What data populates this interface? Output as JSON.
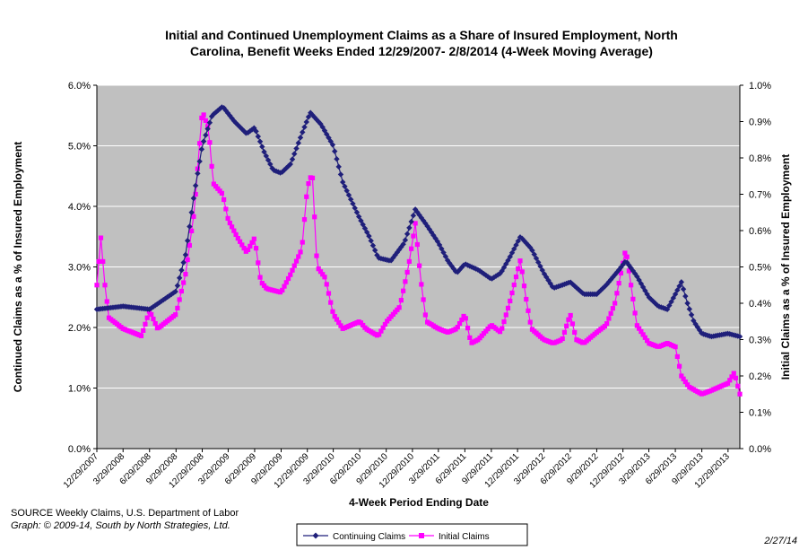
{
  "title_line1": "Initial and Continued Unemployment Claims as a Share of Insured Employment, North",
  "title_line2": "Carolina, Benefit Weeks Ended 12/29/2007- 2/8/2014 (4-Week Moving Average)",
  "source_line": "SOURCE  Weekly Claims, U.S. Department of Labor",
  "graph_credit": "Graph: © 2009-14, South by North Strategies, Ltd.",
  "date_stamp": "2/27/14",
  "colors": {
    "continuing": "#1F1F7A",
    "initial": "#FF00FF",
    "plot_bg": "#C0C0C0",
    "grid": "#FFFFFF"
  },
  "chart_data": {
    "type": "line",
    "xlabel": "4-Week Period Ending Date",
    "ylabel_left": "Continued Claims as a % of Insured Employment",
    "ylabel_right": "Initial Claims as a % of Insured Employment",
    "ylim_left": [
      0,
      6
    ],
    "ylim_right": [
      0,
      1
    ],
    "yticks_left": [
      "0.0%",
      "1.0%",
      "2.0%",
      "3.0%",
      "4.0%",
      "5.0%",
      "6.0%"
    ],
    "yticks_right": [
      "0.0%",
      "0.1%",
      "0.2%",
      "0.3%",
      "0.4%",
      "0.5%",
      "0.6%",
      "0.7%",
      "0.8%",
      "0.9%",
      "1.0%"
    ],
    "x_range": [
      "12/29/2007",
      "2/8/2014"
    ],
    "xticks": [
      "12/29/2007",
      "3/29/2008",
      "6/29/2008",
      "9/29/2008",
      "12/29/2008",
      "3/29/2009",
      "6/29/2009",
      "9/29/2009",
      "12/29/2009",
      "3/29/2010",
      "6/29/2010",
      "9/29/2010",
      "12/29/2010",
      "3/29/2011",
      "6/29/2011",
      "9/29/2011",
      "12/29/2011",
      "3/29/2012",
      "6/29/2012",
      "9/29/2012",
      "12/29/2012",
      "3/29/2013",
      "6/29/2013",
      "9/29/2013",
      "12/29/2013"
    ],
    "grid": true,
    "legend_position": "bottom",
    "series": [
      {
        "name": "Continuing Claims",
        "axis": "left",
        "marker": "diamond",
        "points": [
          [
            "12/29/2007",
            2.3
          ],
          [
            "3/29/2008",
            2.35
          ],
          [
            "6/29/2008",
            2.3
          ],
          [
            "9/29/2008",
            2.6
          ],
          [
            "11/1/2008",
            3.2
          ],
          [
            "12/1/2008",
            4.2
          ],
          [
            "12/29/2008",
            5.0
          ],
          [
            "2/1/2009",
            5.5
          ],
          [
            "3/10/2009",
            5.65
          ],
          [
            "4/20/2009",
            5.4
          ],
          [
            "6/1/2009",
            5.2
          ],
          [
            "6/29/2009",
            5.3
          ],
          [
            "8/1/2009",
            4.9
          ],
          [
            "9/1/2009",
            4.6
          ],
          [
            "9/29/2009",
            4.55
          ],
          [
            "11/1/2009",
            4.7
          ],
          [
            "12/10/2009",
            5.2
          ],
          [
            "1/8/2010",
            5.55
          ],
          [
            "2/15/2010",
            5.35
          ],
          [
            "3/29/2010",
            5.0
          ],
          [
            "5/1/2010",
            4.4
          ],
          [
            "6/29/2010",
            3.8
          ],
          [
            "8/1/2010",
            3.5
          ],
          [
            "9/1/2010",
            3.15
          ],
          [
            "10/15/2010",
            3.1
          ],
          [
            "12/1/2010",
            3.4
          ],
          [
            "1/8/2011",
            3.95
          ],
          [
            "2/15/2011",
            3.7
          ],
          [
            "3/29/2011",
            3.4
          ],
          [
            "5/1/2011",
            3.1
          ],
          [
            "6/1/2011",
            2.9
          ],
          [
            "6/29/2011",
            3.05
          ],
          [
            "8/15/2011",
            2.95
          ],
          [
            "9/29/2011",
            2.8
          ],
          [
            "11/1/2011",
            2.9
          ],
          [
            "12/1/2011",
            3.15
          ],
          [
            "1/8/2012",
            3.5
          ],
          [
            "2/15/2012",
            3.3
          ],
          [
            "3/29/2012",
            2.9
          ],
          [
            "5/1/2012",
            2.65
          ],
          [
            "6/1/2012",
            2.7
          ],
          [
            "6/29/2012",
            2.75
          ],
          [
            "8/15/2012",
            2.55
          ],
          [
            "9/29/2012",
            2.55
          ],
          [
            "11/1/2012",
            2.7
          ],
          [
            "12/15/2012",
            2.95
          ],
          [
            "1/8/2013",
            3.1
          ],
          [
            "2/15/2013",
            2.85
          ],
          [
            "3/29/2013",
            2.5
          ],
          [
            "5/1/2013",
            2.35
          ],
          [
            "6/1/2013",
            2.3
          ],
          [
            "6/29/2013",
            2.55
          ],
          [
            "7/20/2013",
            2.75
          ],
          [
            "8/10/2013",
            2.4
          ],
          [
            "9/1/2013",
            2.1
          ],
          [
            "9/29/2013",
            1.9
          ],
          [
            "11/1/2013",
            1.85
          ],
          [
            "12/29/2013",
            1.9
          ],
          [
            "2/8/2014",
            1.85
          ]
        ]
      },
      {
        "name": "Initial Claims",
        "axis": "right",
        "marker": "square",
        "points": [
          [
            "12/29/2007",
            0.45
          ],
          [
            "1/12/2008",
            0.58
          ],
          [
            "1/26/2008",
            0.45
          ],
          [
            "2/9/2008",
            0.36
          ],
          [
            "3/29/2008",
            0.33
          ],
          [
            "6/1/2008",
            0.31
          ],
          [
            "6/29/2008",
            0.38
          ],
          [
            "7/27/2008",
            0.33
          ],
          [
            "9/29/2008",
            0.37
          ],
          [
            "11/1/2008",
            0.48
          ],
          [
            "12/1/2008",
            0.65
          ],
          [
            "12/29/2008",
            0.93
          ],
          [
            "1/20/2009",
            0.88
          ],
          [
            "2/5/2009",
            0.73
          ],
          [
            "3/10/2009",
            0.7
          ],
          [
            "3/29/2009",
            0.63
          ],
          [
            "5/1/2009",
            0.58
          ],
          [
            "6/1/2009",
            0.54
          ],
          [
            "6/29/2009",
            0.58
          ],
          [
            "7/20/2009",
            0.46
          ],
          [
            "8/10/2009",
            0.44
          ],
          [
            "9/29/2009",
            0.43
          ],
          [
            "11/1/2009",
            0.48
          ],
          [
            "12/10/2009",
            0.55
          ],
          [
            "12/29/2009",
            0.72
          ],
          [
            "1/15/2010",
            0.76
          ],
          [
            "2/1/2010",
            0.5
          ],
          [
            "3/1/2010",
            0.47
          ],
          [
            "3/29/2010",
            0.37
          ],
          [
            "5/1/2010",
            0.33
          ],
          [
            "6/29/2010",
            0.35
          ],
          [
            "7/20/2010",
            0.33
          ],
          [
            "9/1/2010",
            0.31
          ],
          [
            "10/1/2010",
            0.35
          ],
          [
            "11/15/2010",
            0.39
          ],
          [
            "12/15/2010",
            0.5
          ],
          [
            "1/8/2011",
            0.62
          ],
          [
            "1/26/2011",
            0.47
          ],
          [
            "2/15/2011",
            0.35
          ],
          [
            "3/29/2011",
            0.33
          ],
          [
            "5/1/2011",
            0.32
          ],
          [
            "6/1/2011",
            0.33
          ],
          [
            "6/29/2011",
            0.37
          ],
          [
            "7/20/2011",
            0.29
          ],
          [
            "8/15/2011",
            0.3
          ],
          [
            "9/29/2011",
            0.34
          ],
          [
            "11/1/2011",
            0.32
          ],
          [
            "12/1/2011",
            0.4
          ],
          [
            "1/8/2012",
            0.52
          ],
          [
            "1/26/2012",
            0.42
          ],
          [
            "2/15/2012",
            0.33
          ],
          [
            "3/29/2012",
            0.3
          ],
          [
            "5/1/2012",
            0.29
          ],
          [
            "6/1/2012",
            0.3
          ],
          [
            "6/29/2012",
            0.37
          ],
          [
            "7/20/2012",
            0.3
          ],
          [
            "8/15/2012",
            0.29
          ],
          [
            "9/29/2012",
            0.32
          ],
          [
            "11/1/2012",
            0.34
          ],
          [
            "12/1/2012",
            0.4
          ],
          [
            "1/8/2013",
            0.55
          ],
          [
            "1/26/2013",
            0.45
          ],
          [
            "2/15/2013",
            0.34
          ],
          [
            "3/29/2013",
            0.29
          ],
          [
            "5/1/2013",
            0.28
          ],
          [
            "6/1/2013",
            0.29
          ],
          [
            "6/29/2013",
            0.28
          ],
          [
            "7/20/2013",
            0.2
          ],
          [
            "8/15/2013",
            0.17
          ],
          [
            "9/29/2013",
            0.15
          ],
          [
            "11/1/2013",
            0.16
          ],
          [
            "12/29/2013",
            0.18
          ],
          [
            "1/20/2014",
            0.21
          ],
          [
            "2/8/2014",
            0.15
          ]
        ]
      }
    ]
  }
}
